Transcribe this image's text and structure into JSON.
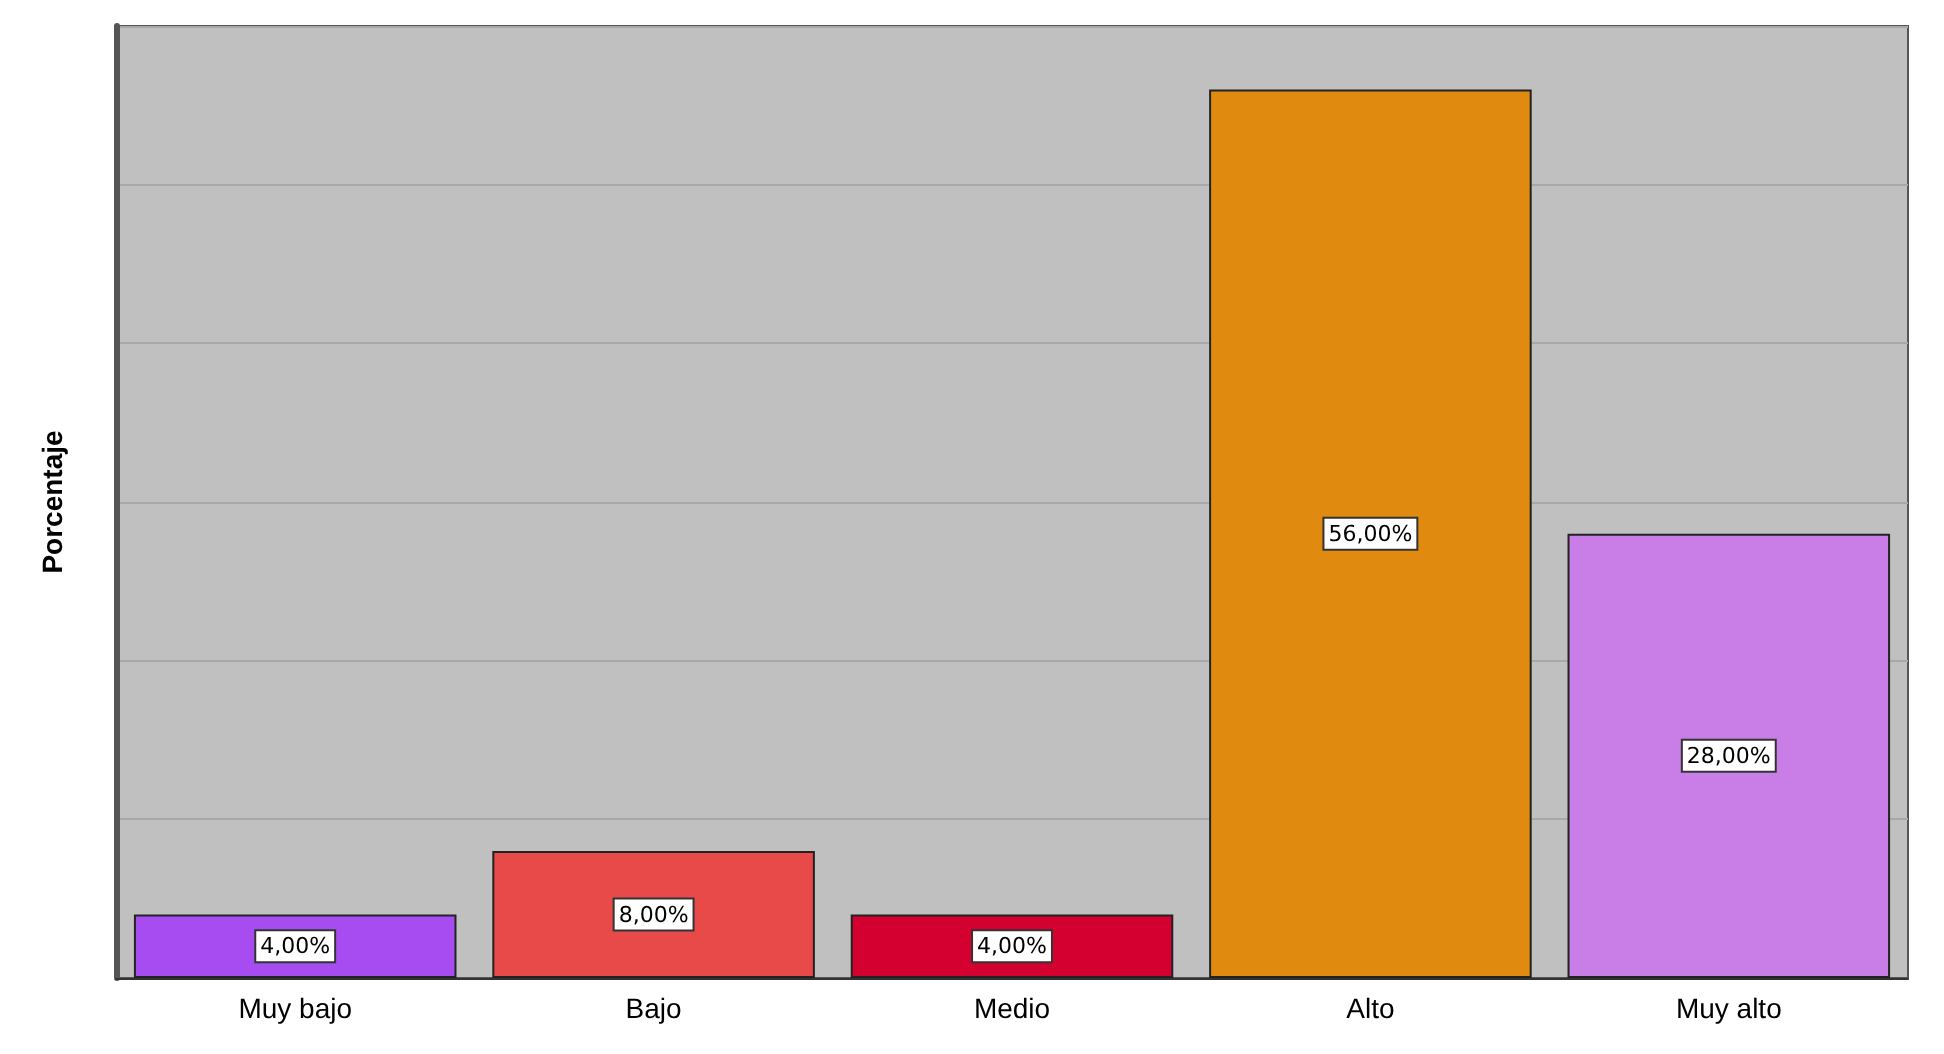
{
  "chart_data": {
    "type": "bar",
    "ylabel": "Porcentaje",
    "categories": [
      "Muy bajo",
      "Bajo",
      "Medio",
      "Alto",
      "Muy alto"
    ],
    "values": [
      4,
      8,
      4,
      56,
      28
    ],
    "colors": [
      "#a64cf0",
      "#e84a4a",
      "#d40030",
      "#e08a10",
      "#c87ee6"
    ],
    "value_labels": [
      "4,00%",
      "8,00%",
      "4,00%",
      "56,00%",
      "28,00%"
    ],
    "grid": "y"
  }
}
